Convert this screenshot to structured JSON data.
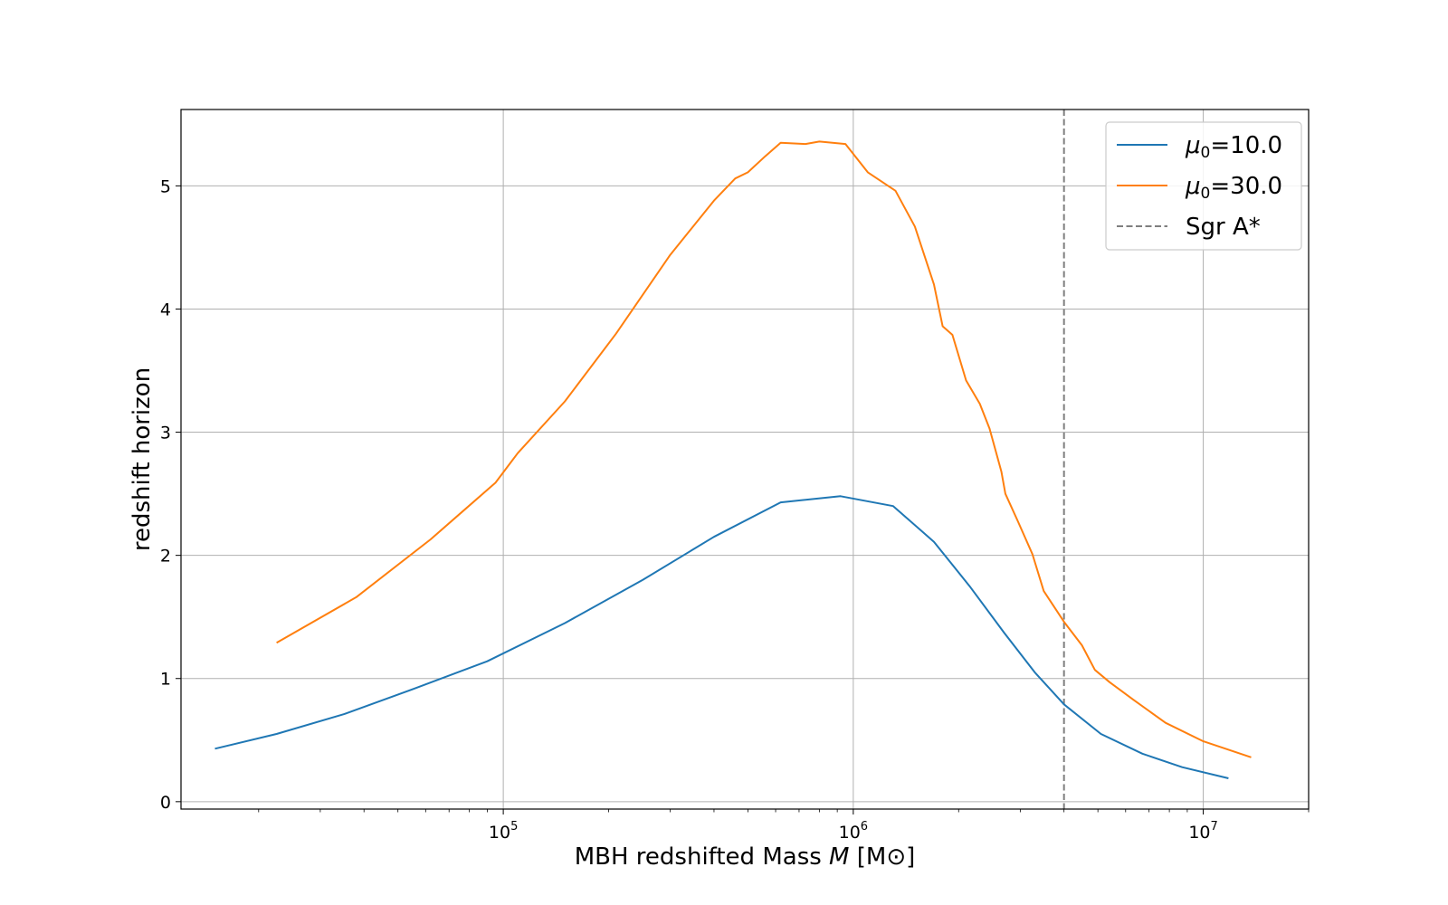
{
  "chart_data": {
    "type": "line",
    "xscale": "log",
    "xlim": [
      12000,
      20000000
    ],
    "ylim": [
      -0.06,
      5.62
    ],
    "grid": true,
    "legend_position": "top-right",
    "xlabel": "MBH redshifted Mass M [M⊙]",
    "ylabel": "redshift horizon",
    "x_tick_labels": [
      {
        "value": 100000,
        "base": "10",
        "exp": "5"
      },
      {
        "value": 1000000,
        "base": "10",
        "exp": "6"
      },
      {
        "value": 10000000,
        "base": "10",
        "exp": "7"
      }
    ],
    "y_ticks": [
      0,
      1,
      2,
      3,
      4,
      5
    ],
    "y_tick_labels": [
      "0",
      "1",
      "2",
      "3",
      "4",
      "5"
    ],
    "series": [
      {
        "name": "μ0=10.0",
        "color": "#1f77b4",
        "points": [
          [
            15000,
            0.43
          ],
          [
            22500,
            0.55
          ],
          [
            35000,
            0.71
          ],
          [
            56000,
            0.92
          ],
          [
            90000,
            1.14
          ],
          [
            150000,
            1.45
          ],
          [
            250000,
            1.8
          ],
          [
            400000,
            2.15
          ],
          [
            620000,
            2.43
          ],
          [
            920000,
            2.48
          ],
          [
            1300000,
            2.4
          ],
          [
            1700000,
            2.11
          ],
          [
            2150000,
            1.75
          ],
          [
            2700000,
            1.37
          ],
          [
            3300000,
            1.05
          ],
          [
            4000000,
            0.79
          ],
          [
            5100000,
            0.55
          ],
          [
            6700000,
            0.39
          ],
          [
            8700000,
            0.28
          ],
          [
            11800000,
            0.19
          ]
        ]
      },
      {
        "name": "μ0=30.0",
        "color": "#ff7f0e",
        "points": [
          [
            22500,
            1.29
          ],
          [
            38000,
            1.66
          ],
          [
            62000,
            2.13
          ],
          [
            95000,
            2.59
          ],
          [
            110000,
            2.83
          ],
          [
            150000,
            3.25
          ],
          [
            210000,
            3.8
          ],
          [
            300000,
            4.44
          ],
          [
            400000,
            4.88
          ],
          [
            460000,
            5.06
          ],
          [
            500000,
            5.11
          ],
          [
            560000,
            5.24
          ],
          [
            620000,
            5.35
          ],
          [
            730000,
            5.34
          ],
          [
            800000,
            5.36
          ],
          [
            950000,
            5.34
          ],
          [
            1100000,
            5.11
          ],
          [
            1320000,
            4.96
          ],
          [
            1500000,
            4.67
          ],
          [
            1700000,
            4.2
          ],
          [
            1800000,
            3.86
          ],
          [
            1920000,
            3.79
          ],
          [
            2100000,
            3.42
          ],
          [
            2300000,
            3.23
          ],
          [
            2450000,
            3.03
          ],
          [
            2650000,
            2.68
          ],
          [
            2720000,
            2.5
          ],
          [
            2950000,
            2.28
          ],
          [
            3250000,
            2.01
          ],
          [
            3500000,
            1.71
          ],
          [
            4000000,
            1.46
          ],
          [
            4500000,
            1.27
          ],
          [
            4900000,
            1.07
          ],
          [
            5400000,
            0.97
          ],
          [
            6300000,
            0.83
          ],
          [
            7800000,
            0.64
          ],
          [
            10000000,
            0.49
          ],
          [
            13700000,
            0.36
          ]
        ]
      }
    ],
    "reference_line": {
      "name": "Sgr A*",
      "x": 4000000,
      "color": "#7f7f7f",
      "style": "dashed"
    }
  }
}
